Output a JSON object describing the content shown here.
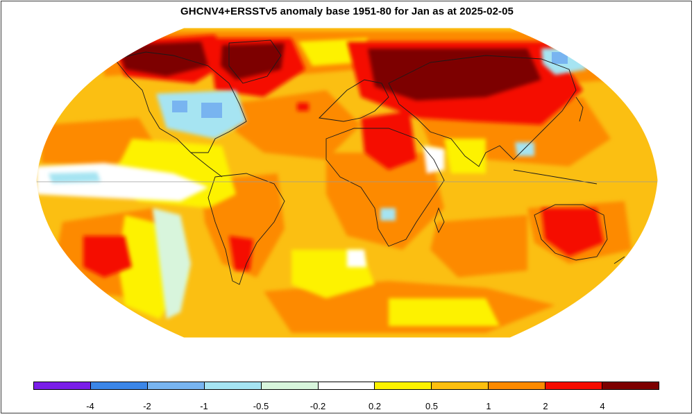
{
  "title": "GHCNV4+ERSSTv5 anomaly base 1951-80 for Jan as at 2025-02-05",
  "legend": {
    "colors": [
      "#7a1ee8",
      "#3b86e8",
      "#78b4f0",
      "#a6e4f2",
      "#d8f5dc",
      "#ffffff",
      "#fdf200",
      "#fdbf0f",
      "#fd8a00",
      "#f50c00",
      "#7d0000"
    ],
    "labels": [
      "-4",
      "-2",
      "-1",
      "-0.5",
      "-0.2",
      "0.2",
      "0.5",
      "1",
      "2",
      "4"
    ]
  },
  "palette": {
    "ocean_base": "#fbbf12",
    "warm": "#fd8a00",
    "hot": "#f50c00",
    "very_hot": "#7d0000",
    "light_yellow": "#fdf200",
    "near_zero": "#ffffff",
    "pale_green": "#d8f5dc",
    "light_blue": "#a6e4f2",
    "blue": "#78b4f0",
    "mid_blue": "#3b86e8"
  }
}
